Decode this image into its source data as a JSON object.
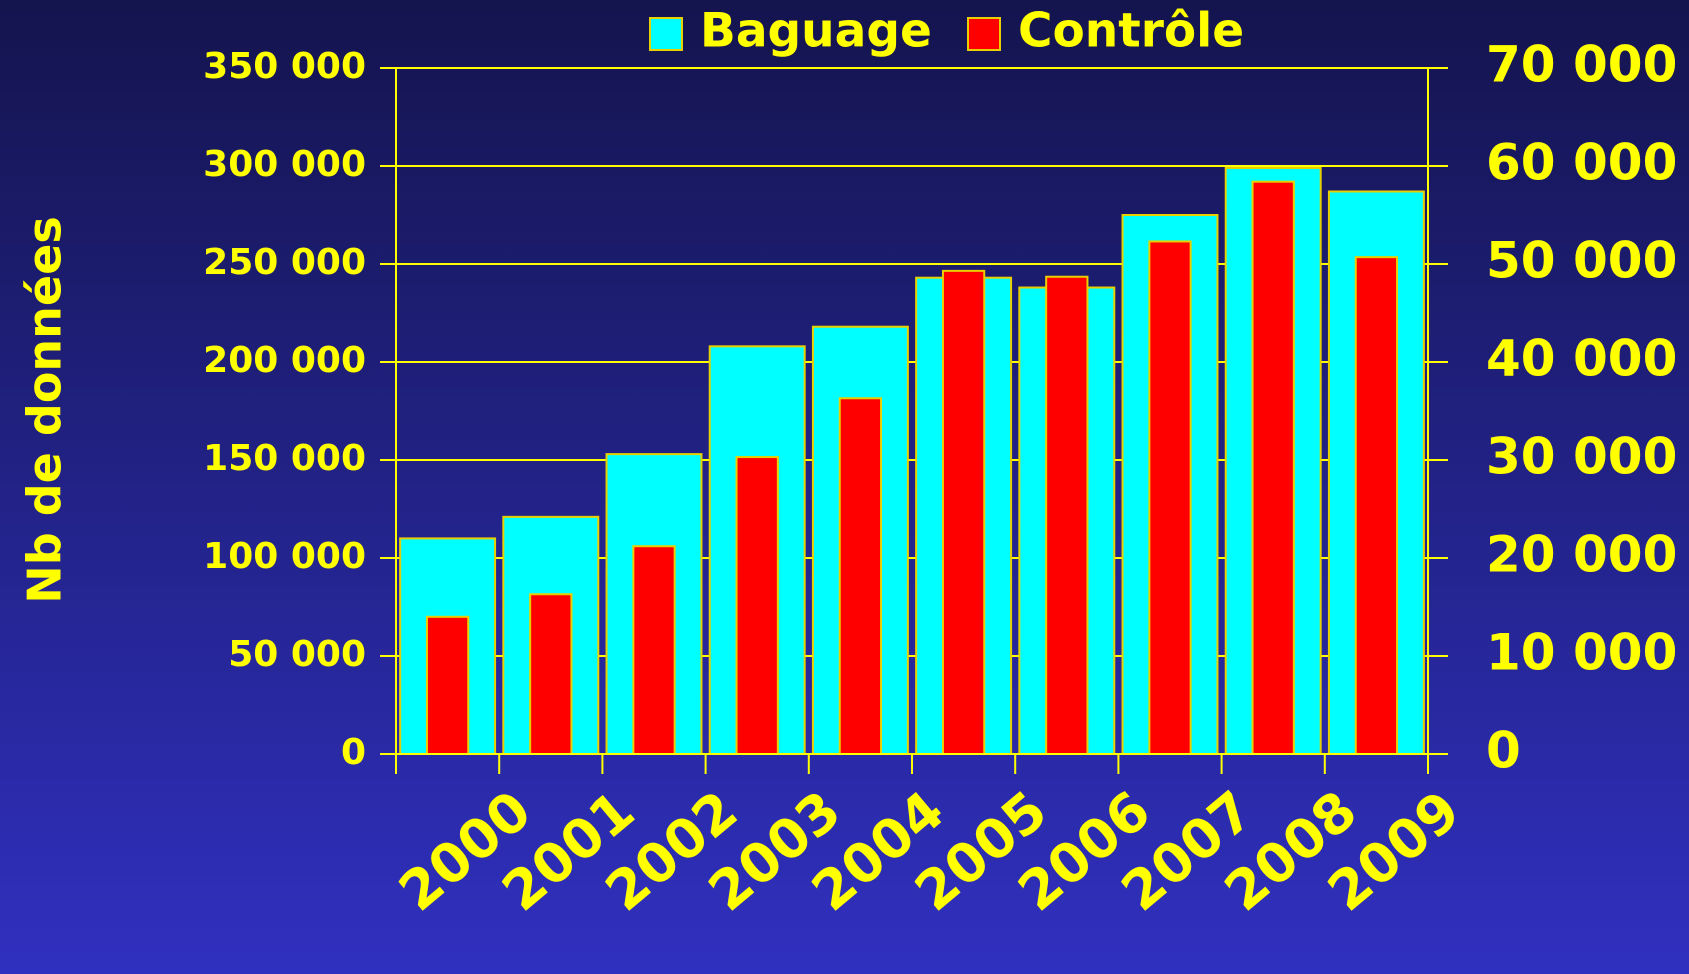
{
  "chart_data": {
    "type": "bar",
    "y_axis_label": "Nb de données",
    "categories": [
      "2000",
      "2001",
      "2002",
      "2003",
      "2004",
      "2005",
      "2006",
      "2007",
      "2008",
      "2009"
    ],
    "series": [
      {
        "name": "Baguage",
        "color": "#00ffff",
        "axis": "y",
        "values": [
          110000,
          121000,
          153000,
          208000,
          218000,
          243000,
          238000,
          275000,
          299000,
          287000
        ]
      },
      {
        "name": "Contrôle",
        "color": "#ff0000",
        "axis": "y2",
        "values": [
          14000,
          16300,
          21200,
          30300,
          36300,
          49300,
          48700,
          52300,
          58400,
          50700
        ]
      }
    ],
    "ylim": [
      0,
      350000
    ],
    "yticks": [
      0,
      {
        "value": 50000,
        "label": "50 000"
      },
      {
        "value": 100000,
        "label": "100 000"
      },
      {
        "value": 150000,
        "label": "150 000"
      },
      {
        "value": 200000,
        "label": "200 000"
      },
      {
        "value": 250000,
        "label": "250 000"
      },
      {
        "value": 300000,
        "label": "300 000"
      },
      {
        "value": 350000,
        "label": "350 000"
      }
    ],
    "y2lim": [
      0,
      70000
    ],
    "y2ticks": [
      0,
      {
        "value": 10000,
        "label": "10 000"
      },
      {
        "value": 20000,
        "label": "20 000"
      },
      {
        "value": 30000,
        "label": "30 000"
      },
      {
        "value": 40000,
        "label": "40 000"
      },
      {
        "value": 50000,
        "label": "50 000"
      },
      {
        "value": 60000,
        "label": "60 000"
      },
      {
        "value": 70000,
        "label": "70 000"
      }
    ],
    "grid": true,
    "legend": "top"
  }
}
